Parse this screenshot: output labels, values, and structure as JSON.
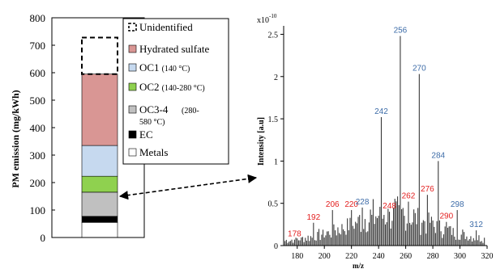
{
  "chart_data": [
    {
      "type": "bar",
      "ylabel": "PM emission (mg/kWh)",
      "ylim": [
        0,
        800
      ],
      "yticks": [
        "0",
        "100",
        "200",
        "300",
        "400",
        "500",
        "600",
        "700",
        "800"
      ],
      "grid": false,
      "legend_position": "right",
      "legend_border": true,
      "series": [
        {
          "name": "Metals",
          "value": 55,
          "color": "#ffffff"
        },
        {
          "name": "EC",
          "value": 22,
          "color": "#000000"
        },
        {
          "name": "OC3-4",
          "name_suffix": "(280-580 °C)",
          "value": 88,
          "color": "#c0c0c0"
        },
        {
          "name": "OC2",
          "name_suffix": "(140-280 °C)",
          "value": 58,
          "color": "#8fd14f"
        },
        {
          "name": "OC1",
          "name_suffix": "(140 °C)",
          "value": 112,
          "color": "#c6d9ef"
        },
        {
          "name": "Hydrated sulfate",
          "value": 260,
          "color": "#d99694"
        },
        {
          "name": "Unidentified",
          "value": 133,
          "color": "none",
          "style": "dashed"
        }
      ],
      "bar_total": 728
    },
    {
      "type": "bar",
      "ylabel": "Intensity [a.u]",
      "xlabel": "m/z",
      "y_exponent_label": "x10",
      "y_exponent": "-10",
      "xlim": [
        170,
        320
      ],
      "ylim": [
        0,
        2.6
      ],
      "xticks": [
        "180",
        "200",
        "220",
        "240",
        "260",
        "280",
        "300",
        "320"
      ],
      "yticks": [
        "0",
        "0.5",
        "1",
        "1.5",
        "2",
        "2.5"
      ],
      "annotations": [
        {
          "label": "178",
          "x": 178,
          "y": 0.07,
          "color": "#e32020"
        },
        {
          "label": "192",
          "x": 192,
          "y": 0.27,
          "color": "#e32020"
        },
        {
          "label": "206",
          "x": 206,
          "y": 0.42,
          "color": "#e32020"
        },
        {
          "label": "220",
          "x": 220,
          "y": 0.42,
          "color": "#e32020"
        },
        {
          "label": "228",
          "x": 228,
          "y": 0.45,
          "color": "#3d6ca8"
        },
        {
          "label": "242",
          "x": 242,
          "y": 1.52,
          "color": "#3d6ca8"
        },
        {
          "label": "248",
          "x": 248,
          "y": 0.4,
          "color": "#e32020"
        },
        {
          "label": "256",
          "x": 256,
          "y": 2.48,
          "color": "#3d6ca8"
        },
        {
          "label": "262",
          "x": 262,
          "y": 0.52,
          "color": "#e32020"
        },
        {
          "label": "270",
          "x": 270,
          "y": 2.03,
          "color": "#3d6ca8"
        },
        {
          "label": "276",
          "x": 276,
          "y": 0.6,
          "color": "#e32020"
        },
        {
          "label": "284",
          "x": 284,
          "y": 1.0,
          "color": "#3d6ca8"
        },
        {
          "label": "290",
          "x": 290,
          "y": 0.28,
          "color": "#e32020"
        },
        {
          "label": "298",
          "x": 298,
          "y": 0.42,
          "color": "#3d6ca8"
        },
        {
          "label": "312",
          "x": 312,
          "y": 0.18,
          "color": "#3d6ca8"
        }
      ]
    }
  ],
  "connector": {
    "style": "dashed",
    "arrows": "both"
  },
  "colors": {
    "red_label": "#e32020",
    "blue_label": "#3d6ca8",
    "spectrum_bar": "#3a3a3a"
  }
}
